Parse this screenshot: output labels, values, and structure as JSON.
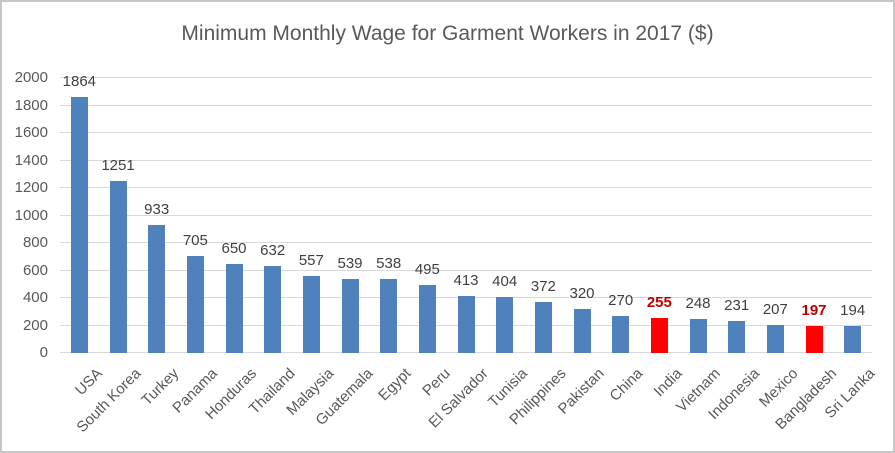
{
  "window": {
    "background": "#ffffff",
    "border_color": "#c6c6c6"
  },
  "chart_data": {
    "type": "bar",
    "title": "Minimum Monthly Wage for Garment Workers in 2017 ($)",
    "xlabel": "",
    "ylabel": "",
    "categories": [
      "USA",
      "South Korea",
      "Turkey",
      "Panama",
      "Honduras",
      "Thailand",
      "Malaysia",
      "Guatemala",
      "Egypt",
      "Peru",
      "El Salvador",
      "Tunisia",
      "Philippines",
      "Pakistan",
      "China",
      "India",
      "Vietnam",
      "Indonesia",
      "Mexico",
      "Bangladesh",
      "Sri Lanka"
    ],
    "values": [
      1864,
      1251,
      933,
      705,
      650,
      632,
      557,
      539,
      538,
      495,
      413,
      404,
      372,
      320,
      270,
      255,
      248,
      231,
      207,
      197,
      194
    ],
    "highlighted_categories": [
      "India",
      "Bangladesh"
    ],
    "ylim": [
      0,
      2000
    ],
    "yticks": [
      0,
      200,
      400,
      600,
      800,
      1000,
      1200,
      1400,
      1600,
      1800,
      2000
    ],
    "grid": true,
    "legend": false,
    "colors": {
      "bar": "#4f81bd",
      "highlight_bar": "#fe0000",
      "value_label": "#404040",
      "highlight_value_label": "#c00000",
      "axis_text": "#595959",
      "title_text": "#595959",
      "gridline": "#d9d9d9"
    }
  }
}
